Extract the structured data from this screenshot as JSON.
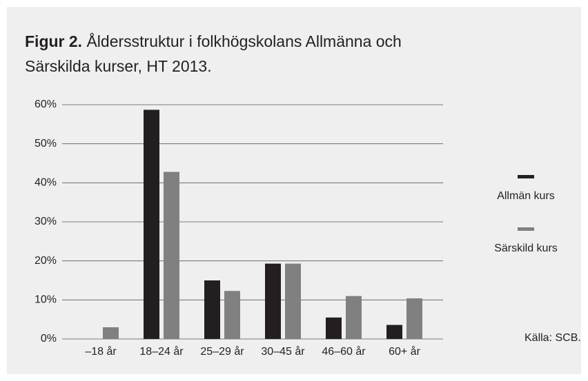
{
  "chart_data": {
    "type": "bar",
    "figure_label": "Figur 2.",
    "title": "Åldersstruktur i folkhögskolans Allmänna och Särskilda kurser, HT 2013.",
    "categories": [
      "–18 år",
      "18–24 år",
      "25–29 år",
      "30–45 år",
      "46–60 år",
      "60+ år"
    ],
    "series": [
      {
        "name": "Allmän kurs",
        "color": "#231f20",
        "values": [
          0,
          58.7,
          15,
          19.3,
          5.5,
          3.6
        ]
      },
      {
        "name": "Särskild kurs",
        "color": "#808080",
        "values": [
          3,
          42.8,
          12.3,
          19.3,
          11,
          10.4
        ]
      }
    ],
    "ylim": [
      0,
      60
    ],
    "yticks": [
      {
        "value": 0,
        "label": "0%"
      },
      {
        "value": 10,
        "label": "10%"
      },
      {
        "value": 20,
        "label": "20%"
      },
      {
        "value": 30,
        "label": "30%"
      },
      {
        "value": 40,
        "label": "40%"
      },
      {
        "value": 50,
        "label": "50%"
      },
      {
        "value": 60,
        "label": "60%"
      }
    ],
    "grid": true,
    "legend": "right",
    "source": "Källa: SCB."
  }
}
